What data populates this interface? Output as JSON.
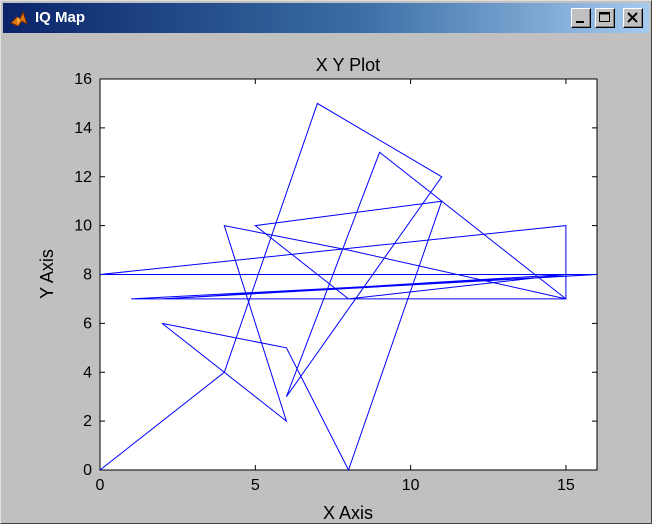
{
  "window": {
    "title": "IQ Map",
    "icon": "matlab-icon",
    "controls": [
      "minimize-icon",
      "maximize-icon",
      "close-icon"
    ]
  },
  "colors": {
    "titlebar_start": "#0a246a",
    "titlebar_end": "#a6caf0",
    "window_bg": "#c0c0c0",
    "plot_bg": "#ffffff",
    "line": "#0000ff"
  },
  "chart_data": {
    "type": "line",
    "title": "X Y Plot",
    "xlabel": "X Axis",
    "ylabel": "Y Axis",
    "xlim": [
      0,
      16
    ],
    "ylim": [
      0,
      16
    ],
    "xticks": [
      0,
      5,
      10,
      15
    ],
    "yticks": [
      0,
      2,
      4,
      6,
      8,
      10,
      12,
      14,
      16
    ],
    "grid": false,
    "series": [
      {
        "x": [
          0,
          4,
          7,
          11,
          6,
          9,
          15,
          15,
          0,
          16,
          1,
          15,
          8,
          4,
          6,
          2,
          6,
          8,
          11,
          5,
          8,
          15,
          2,
          16,
          0
        ],
        "y": [
          0,
          4,
          15,
          12,
          3,
          13,
          7,
          10,
          8,
          8,
          7,
          7,
          9,
          10,
          2,
          6,
          5,
          0,
          11,
          10,
          7,
          8,
          7,
          8,
          8
        ]
      }
    ]
  }
}
